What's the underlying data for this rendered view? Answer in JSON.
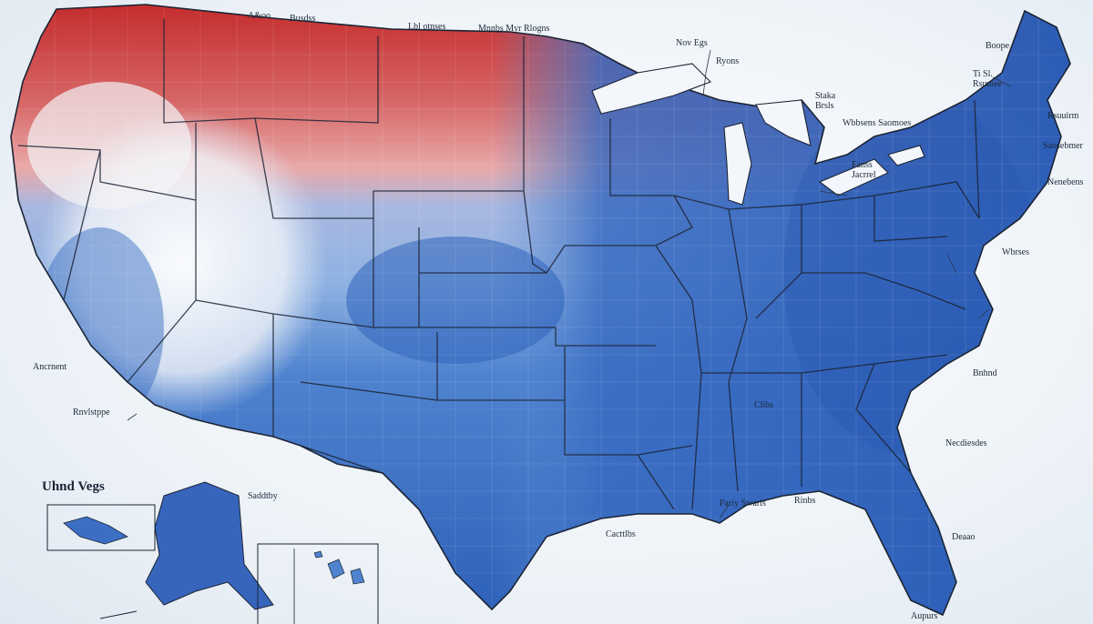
{
  "map": {
    "title_text": "Uhnd Vegs",
    "colors": {
      "deep_blue": "#2c5fb8",
      "mid_blue": "#4f83cf",
      "light_blue": "#9dbfe6",
      "pale": "#f3f4f6",
      "pink": "#e79b9b",
      "red": "#c42a2a",
      "border": "#1b2434"
    },
    "labels": [
      {
        "id": "lbl-a",
        "text": "A&oo"
      },
      {
        "id": "lbl-b",
        "text": "Busdss"
      },
      {
        "id": "lbl-c",
        "text": "Lbl otnses"
      },
      {
        "id": "lbl-d",
        "text": "Mnnbs Myr Rlogns"
      },
      {
        "id": "lbl-e",
        "text": "Nov Egs"
      },
      {
        "id": "lbl-f",
        "text": "Ryons"
      },
      {
        "id": "lbl-g",
        "text": "Boope"
      },
      {
        "id": "lbl-h",
        "text": "Ti Sl. Rsuuiee"
      },
      {
        "id": "lbl-i",
        "text": "Staka Brsls"
      },
      {
        "id": "lbl-j",
        "text": "Wbbsens Saomoes"
      },
      {
        "id": "lbl-k",
        "text": "Rsuuirm"
      },
      {
        "id": "lbl-l",
        "text": "Saosebmer"
      },
      {
        "id": "lbl-m",
        "text": "Fanss Jacrrel"
      },
      {
        "id": "lbl-n",
        "text": "Wbrses"
      },
      {
        "id": "lbl-o",
        "text": "Ancrnent"
      },
      {
        "id": "lbl-p",
        "text": "Rnvlstppe"
      },
      {
        "id": "lbl-q",
        "text": "Clibs"
      },
      {
        "id": "lbl-r",
        "text": "Cacttlbs"
      },
      {
        "id": "lbl-s",
        "text": "Necdiesdes"
      },
      {
        "id": "lbl-t",
        "text": "Rinbs"
      },
      {
        "id": "lbl-u",
        "text": "Pariy Swarls"
      },
      {
        "id": "lbl-v",
        "text": "Deaao"
      },
      {
        "id": "lbl-w",
        "text": "Bnhnd"
      },
      {
        "id": "lbl-x",
        "text": "Aupurs"
      },
      {
        "id": "lbl-y",
        "text": "Saddtby"
      },
      {
        "id": "lbl-z",
        "text": "Nenebens"
      }
    ]
  }
}
